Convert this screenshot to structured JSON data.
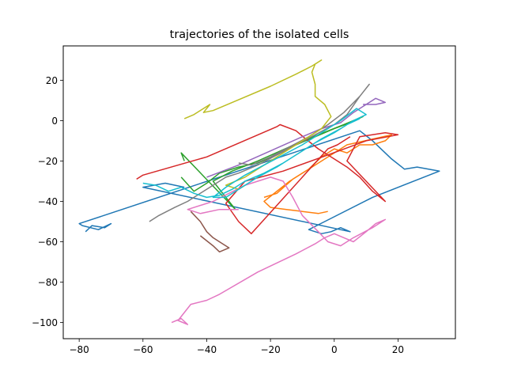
{
  "chart_data": {
    "type": "line",
    "title": "trajectories of the isolated cells",
    "xlabel": "",
    "ylabel": "",
    "xlim": [
      -85,
      38
    ],
    "ylim": [
      -108,
      37
    ],
    "xticks": [
      -80,
      -60,
      -40,
      -20,
      0,
      20
    ],
    "yticks": [
      -100,
      -80,
      -60,
      -40,
      -20,
      0,
      20
    ],
    "xtick_labels": [
      "−80",
      "−60",
      "−40",
      "−20",
      "0",
      "20"
    ],
    "ytick_labels": [
      "−100",
      "−80",
      "−60",
      "−40",
      "−20",
      "0",
      "20"
    ],
    "grid": false,
    "legend": false,
    "series": [
      {
        "color": "#1f77b4",
        "points": [
          [
            -78,
            -55
          ],
          [
            -76,
            -52
          ],
          [
            -72,
            -53
          ],
          [
            -70,
            -51
          ],
          [
            -74,
            -54
          ],
          [
            -79,
            -52
          ],
          [
            -80,
            -51
          ],
          [
            8,
            -5
          ],
          [
            12,
            -10
          ],
          [
            18,
            -19
          ],
          [
            22,
            -24
          ],
          [
            26,
            -23
          ],
          [
            33,
            -25
          ],
          [
            12,
            -38
          ],
          [
            -3,
            -50
          ],
          [
            -8,
            -54
          ],
          [
            -4,
            -56
          ],
          [
            -1,
            -55
          ],
          [
            2,
            -53
          ],
          [
            5,
            -55
          ],
          [
            -60,
            -33
          ],
          [
            -53,
            -31
          ],
          [
            -47,
            -33
          ]
        ]
      },
      {
        "color": "#ff7f0e",
        "points": [
          [
            -22,
            -38
          ],
          [
            -18,
            -36
          ],
          [
            -13,
            -29
          ],
          [
            -8,
            -24
          ],
          [
            -4,
            -18
          ],
          [
            0,
            -14
          ],
          [
            4,
            -16
          ],
          [
            8,
            -12
          ],
          [
            12,
            -12
          ],
          [
            16,
            -10
          ],
          [
            18,
            -7
          ],
          [
            4,
            -12
          ],
          [
            -6,
            -22
          ],
          [
            -14,
            -30
          ],
          [
            -22,
            -40
          ],
          [
            -20,
            -43
          ],
          [
            -15,
            -44
          ],
          [
            -10,
            -45
          ],
          [
            -5,
            -46
          ],
          [
            -2,
            -45
          ]
        ]
      },
      {
        "color": "#2ca02c",
        "points": [
          [
            -48,
            -28
          ],
          [
            -44,
            -35
          ],
          [
            -40,
            -31
          ],
          [
            -36,
            -26
          ],
          [
            -30,
            -23
          ],
          [
            -24,
            -21
          ],
          [
            -18,
            -17
          ],
          [
            -12,
            -12
          ],
          [
            -6,
            -8
          ],
          [
            0,
            -4
          ],
          [
            5,
            -1
          ],
          [
            9,
            2
          ],
          [
            3,
            -2
          ],
          [
            -5,
            -7
          ],
          [
            -14,
            -13
          ],
          [
            -24,
            -20
          ],
          [
            -32,
            -25
          ],
          [
            -38,
            -30
          ],
          [
            -34,
            -38
          ],
          [
            -31,
            -44
          ],
          [
            -48,
            -16
          ],
          [
            -47,
            -20
          ]
        ]
      },
      {
        "color": "#d62728",
        "points": [
          [
            -62,
            -29
          ],
          [
            -60,
            -27
          ],
          [
            -40,
            -18
          ],
          [
            -18,
            -3
          ],
          [
            -17,
            -2
          ],
          [
            -12,
            -5
          ],
          [
            -9,
            -9
          ],
          [
            -5,
            -14
          ],
          [
            0,
            -19
          ],
          [
            4,
            -23
          ],
          [
            8,
            -28
          ],
          [
            12,
            -35
          ],
          [
            16,
            -40
          ],
          [
            10,
            -30
          ],
          [
            4,
            -20
          ],
          [
            8,
            -8
          ],
          [
            16,
            -6
          ],
          [
            20,
            -7
          ],
          [
            10,
            -10
          ],
          [
            -2,
            -17
          ],
          [
            -16,
            -25
          ],
          [
            -28,
            -30
          ],
          [
            -34,
            -41
          ],
          [
            -30,
            -50
          ],
          [
            -26,
            -56
          ],
          [
            -2,
            -14
          ],
          [
            1,
            -12
          ],
          [
            5,
            -8
          ]
        ]
      },
      {
        "color": "#9467bd",
        "points": [
          [
            -40,
            -28
          ],
          [
            -30,
            -22
          ],
          [
            -20,
            -15
          ],
          [
            -10,
            -8
          ],
          [
            -4,
            -4
          ],
          [
            2,
            -1
          ],
          [
            6,
            4
          ],
          [
            10,
            8
          ],
          [
            13,
            11
          ],
          [
            16,
            9
          ],
          [
            13,
            8
          ],
          [
            9,
            8
          ]
        ]
      },
      {
        "color": "#8c564b",
        "points": [
          [
            -45,
            -45
          ],
          [
            -42,
            -50
          ],
          [
            -40,
            -55
          ],
          [
            -38,
            -58
          ],
          [
            -35,
            -61
          ],
          [
            -33,
            -63
          ],
          [
            -36,
            -65
          ],
          [
            -38,
            -62
          ],
          [
            -42,
            -57
          ]
        ]
      },
      {
        "color": "#e377c2",
        "points": [
          [
            -51,
            -100
          ],
          [
            -48,
            -98
          ],
          [
            -46,
            -101
          ],
          [
            -49,
            -99
          ],
          [
            -45,
            -91
          ],
          [
            -40,
            -89
          ],
          [
            -36,
            -86
          ],
          [
            -24,
            -75
          ],
          [
            -12,
            -66
          ],
          [
            -6,
            -61
          ],
          [
            -3,
            -58
          ],
          [
            0,
            -56
          ],
          [
            3,
            -58
          ],
          [
            6,
            -60
          ],
          [
            10,
            -55
          ],
          [
            13,
            -51
          ],
          [
            16,
            -49
          ],
          [
            12,
            -53
          ],
          [
            6,
            -58
          ],
          [
            2,
            -62
          ],
          [
            -2,
            -60
          ],
          [
            -5,
            -55
          ],
          [
            -10,
            -47
          ],
          [
            -13,
            -38
          ],
          [
            -16,
            -30
          ],
          [
            -20,
            -28
          ],
          [
            -28,
            -32
          ],
          [
            -38,
            -40
          ],
          [
            -46,
            -44
          ],
          [
            -42,
            -46
          ],
          [
            -36,
            -44
          ],
          [
            -30,
            -44
          ]
        ]
      },
      {
        "color": "#7f7f7f",
        "points": [
          [
            -58,
            -50
          ],
          [
            -55,
            -47
          ],
          [
            -50,
            -43
          ],
          [
            -46,
            -40
          ],
          [
            -42,
            -36
          ],
          [
            -38,
            -32
          ],
          [
            -34,
            -28
          ],
          [
            -30,
            -26
          ],
          [
            -24,
            -22
          ],
          [
            -18,
            -17
          ],
          [
            -12,
            -12
          ],
          [
            -6,
            -7
          ],
          [
            0,
            -2
          ],
          [
            4,
            3
          ],
          [
            8,
            12
          ],
          [
            11,
            18
          ],
          [
            8,
            12
          ],
          [
            3,
            4
          ],
          [
            -2,
            -2
          ],
          [
            -8,
            -8
          ],
          [
            -14,
            -13
          ],
          [
            -20,
            -18
          ],
          [
            -26,
            -22
          ],
          [
            -30,
            -21
          ]
        ]
      },
      {
        "color": "#bcbd22",
        "points": [
          [
            -47,
            1
          ],
          [
            -44,
            3
          ],
          [
            -41,
            6
          ],
          [
            -39,
            8
          ],
          [
            -41,
            4
          ],
          [
            -38,
            5
          ],
          [
            -20,
            17
          ],
          [
            -12,
            23
          ],
          [
            -7,
            27
          ],
          [
            -4,
            30
          ],
          [
            -6,
            28
          ],
          [
            -7,
            24
          ],
          [
            -6,
            18
          ],
          [
            -6,
            12
          ],
          [
            -3,
            8
          ],
          [
            -1,
            2
          ],
          [
            -4,
            -4
          ],
          [
            -10,
            -10
          ],
          [
            -16,
            -16
          ],
          [
            -22,
            -22
          ],
          [
            -28,
            -28
          ],
          [
            -34,
            -32
          ],
          [
            -30,
            -34
          ],
          [
            -28,
            -32
          ]
        ]
      },
      {
        "color": "#17becf",
        "points": [
          [
            -60,
            -31
          ],
          [
            -56,
            -32
          ],
          [
            -52,
            -35
          ],
          [
            -48,
            -33
          ],
          [
            -44,
            -36
          ],
          [
            -40,
            -38
          ],
          [
            -36,
            -37
          ],
          [
            -32,
            -34
          ],
          [
            -28,
            -30
          ],
          [
            -22,
            -26
          ],
          [
            -16,
            -21
          ],
          [
            -10,
            -15
          ],
          [
            -4,
            -9
          ],
          [
            2,
            -4
          ],
          [
            6,
            0
          ],
          [
            10,
            3
          ],
          [
            7,
            6
          ],
          [
            2,
            0
          ],
          [
            -4,
            -6
          ],
          [
            -10,
            -12
          ],
          [
            -16,
            -17
          ],
          [
            -22,
            -22
          ],
          [
            -28,
            -27
          ],
          [
            -34,
            -33
          ],
          [
            -38,
            -38
          ],
          [
            -34,
            -38
          ],
          [
            -30,
            -34
          ],
          [
            -24,
            -28
          ],
          [
            -18,
            -23
          ],
          [
            -12,
            -17
          ],
          [
            -6,
            -11
          ],
          [
            0,
            -6
          ],
          [
            4,
            -2
          ],
          [
            8,
            1
          ]
        ]
      }
    ]
  }
}
